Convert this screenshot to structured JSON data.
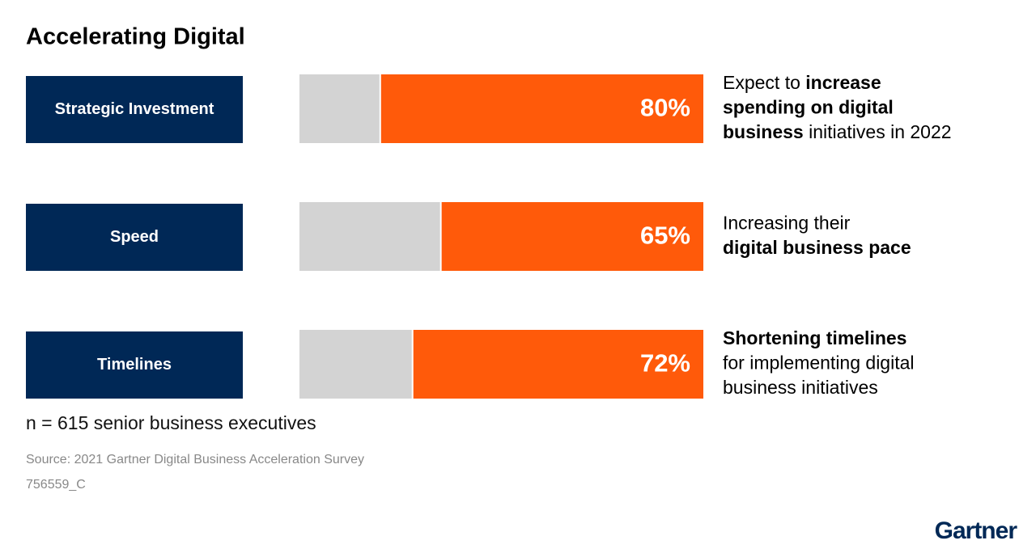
{
  "chart_data": {
    "type": "bar",
    "title": "Accelerating Digital",
    "categories": [
      "Strategic Investment",
      "Speed",
      "Timelines"
    ],
    "values": [
      80,
      65,
      72
    ],
    "value_labels": [
      "80%",
      "65%",
      "72%"
    ],
    "xlim": [
      0,
      100
    ],
    "color": "#ff5a0a",
    "track_color": "#d3d3d3",
    "label_color": "#002856",
    "descriptions": [
      [
        [
          {
            "text": "Expect to ",
            "bold": false
          },
          {
            "text": "increase",
            "bold": true
          }
        ],
        [
          {
            "text": "spending on digital",
            "bold": true
          }
        ],
        [
          {
            "text": "business",
            "bold": true
          },
          {
            "text": " initiatives in 2022",
            "bold": false
          }
        ]
      ],
      [
        [
          {
            "text": "Increasing their",
            "bold": false
          }
        ],
        [
          {
            "text": "digital business pace",
            "bold": true
          }
        ]
      ],
      [
        [
          {
            "text": "Shortening timelines",
            "bold": true
          }
        ],
        [
          {
            "text": "for implementing digital",
            "bold": false
          }
        ],
        [
          {
            "text": "business initiatives",
            "bold": false
          }
        ]
      ]
    ],
    "note": "n = 615 senior business executives",
    "source": "Source: 2021 Gartner Digital Business Acceleration Survey",
    "code": "756559_C",
    "brand": "Gartner"
  }
}
